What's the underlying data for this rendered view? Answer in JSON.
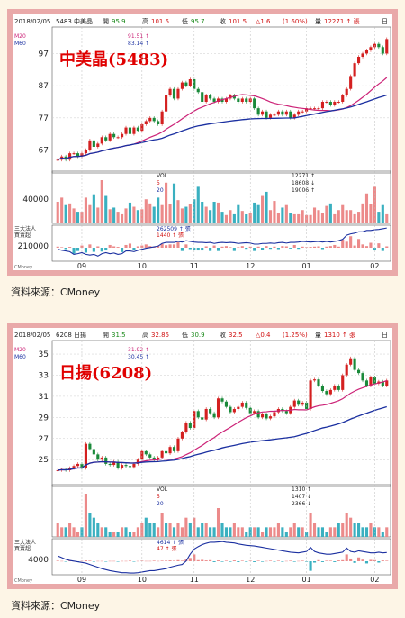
{
  "chart_data": [
    {
      "type": "line",
      "header": {
        "date": "2018/02/05",
        "code": "5483",
        "name": "中美晶",
        "open_label": "開",
        "open": "95.9",
        "high_label": "高",
        "high": "101.5",
        "low_label": "低",
        "low": "95.7",
        "close_label": "收",
        "close": "101.5",
        "change": "1.6",
        "change_pct": "(1.60%)",
        "vol_label": "量",
        "vol": "12271",
        "unit": "張",
        "period": "日"
      },
      "title": "中美晶(5483)",
      "ma_labels": [
        {
          "name": "M20",
          "value": "91.51",
          "color": "#cc2277"
        },
        {
          "name": "M60",
          "value": "83.14",
          "color": "#1a2fa0"
        }
      ],
      "price_ticks": [
        97,
        87,
        77,
        67
      ],
      "price_range": [
        61,
        103
      ],
      "close": [
        64,
        65,
        64,
        66,
        66,
        65,
        66,
        67,
        70,
        68,
        69,
        71,
        70,
        72,
        71,
        71,
        72,
        74,
        72,
        74,
        73,
        75,
        76,
        77,
        76,
        75,
        79,
        84,
        86,
        83,
        86,
        88,
        87,
        89,
        86,
        85,
        82,
        84,
        83,
        82,
        83,
        82,
        83,
        84,
        83,
        82,
        83,
        82,
        83,
        80,
        78,
        79,
        77,
        78,
        78,
        79,
        78,
        79,
        77,
        78,
        79,
        79,
        80,
        80,
        80,
        80,
        82,
        82,
        81,
        82,
        82,
        84,
        86,
        90,
        94,
        96,
        97,
        98,
        99,
        100,
        99,
        97,
        101.5
      ],
      "vol_panel": {
        "label": "VOL",
        "values": [
          {
            "v": "12271",
            "arrow": "↑"
          },
          {
            "v": "18608",
            "arrow": "↓"
          },
          {
            "v": "19006",
            "arrow": "↑"
          }
        ],
        "series_labels": [
          "5",
          "20"
        ],
        "tick": "40000"
      },
      "vol": [
        26,
        31,
        22,
        24,
        18,
        14,
        14,
        31,
        22,
        35,
        19,
        52,
        33,
        17,
        19,
        14,
        12,
        18,
        25,
        20,
        16,
        17,
        29,
        24,
        20,
        31,
        22,
        49,
        23,
        48,
        28,
        18,
        20,
        23,
        29,
        44,
        26,
        20,
        16,
        26,
        25,
        14,
        10,
        16,
        12,
        22,
        15,
        11,
        13,
        25,
        22,
        33,
        38,
        16,
        27,
        13,
        19,
        22,
        13,
        12,
        12,
        16,
        10,
        10,
        19,
        16,
        13,
        21,
        24,
        12,
        16,
        22,
        16,
        16,
        12,
        14,
        24,
        36,
        23,
        44,
        14,
        22,
        12
      ],
      "inst_panel": {
        "label": "三大法人",
        "sub_label": "買賣超",
        "line_value": "262509",
        "line_arrow": "↑",
        "bar_value": "1440",
        "bar_arrow": "↑",
        "unit": "張",
        "tick": "210000"
      },
      "inst_line": [
        0.35,
        0.32,
        0.3,
        0.28,
        0.2,
        0.22,
        0.25,
        0.2,
        0.18,
        0.2,
        0.15,
        0.22,
        0.25,
        0.22,
        0.24,
        0.2,
        0.22,
        0.3,
        0.3,
        0.28,
        0.32,
        0.35,
        0.38,
        0.4,
        0.42,
        0.44,
        0.52,
        0.55,
        0.55,
        0.55,
        0.58,
        0.56,
        0.6,
        0.58,
        0.56,
        0.55,
        0.55,
        0.54,
        0.55,
        0.52,
        0.54,
        0.55,
        0.54,
        0.55,
        0.54,
        0.52,
        0.53,
        0.54,
        0.53,
        0.5,
        0.5,
        0.52,
        0.52,
        0.53,
        0.52,
        0.54,
        0.55,
        0.53,
        0.55,
        0.55,
        0.56,
        0.58,
        0.57,
        0.56,
        0.57,
        0.58,
        0.56,
        0.58,
        0.56,
        0.58,
        0.6,
        0.64,
        0.76,
        0.8,
        0.82,
        0.86,
        0.86,
        0.9,
        0.9,
        0.92,
        0.93,
        0.95,
        0.97
      ],
      "inst_bars": [
        0.04,
        0.02,
        -0.05,
        0.03,
        -0.22,
        -0.12,
        0.08,
        -0.18,
        0.12,
        -0.15,
        0.05,
        -0.14,
        -0.1,
        0.1,
        0.05,
        0.03,
        -0.16,
        0.1,
        0.15,
        -0.1,
        0.05,
        0.08,
        0.12,
        0.06,
        0.03,
        0.08,
        0.14,
        0.09,
        0.12,
        0.12,
        0.2,
        -0.12,
        0.12,
        -0.05,
        -0.1,
        -0.1,
        -0.1,
        0.05,
        -0.12,
        0.08,
        -0.12,
        0.04,
        0.06,
        0.02,
        -0.12,
        0.02,
        0.06,
        -0.04,
        0.04,
        -0.12,
        0.04,
        -0.08,
        0.06,
        -0.04,
        0.04,
        -0.05,
        0.06,
        0.05,
        -0.03,
        0.1,
        -0.04,
        0.04,
        0.02,
        0.03,
        0.04,
        0.05,
        -0.05,
        0.04,
        0.06,
        0.1,
        0.04,
        0.3,
        0.22,
        0.42,
        0.08,
        0.32,
        0.12,
        0.06,
        0.18,
        -0.1,
        0.16,
        -0.12,
        0.05
      ],
      "x_ticks": [
        {
          "label": "09",
          "i": 6
        },
        {
          "label": "10",
          "i": 21
        },
        {
          "label": "11",
          "i": 34
        },
        {
          "label": "12",
          "i": 48
        },
        {
          "label": "01",
          "i": 62
        },
        {
          "label": "02",
          "i": 79
        }
      ],
      "year_label": "2018",
      "watermark": "CMoney"
    },
    {
      "type": "line",
      "header": {
        "date": "2018/02/05",
        "code": "6208",
        "name": "日揚",
        "open_label": "開",
        "open": "31.5",
        "high_label": "高",
        "high": "32.85",
        "low_label": "低",
        "low": "30.9",
        "close_label": "收",
        "close": "32.5",
        "change": "0.4",
        "change_pct": "(1.25%)",
        "vol_label": "量",
        "vol": "1310",
        "unit": "張",
        "period": "日"
      },
      "title": "日揚(6208)",
      "ma_labels": [
        {
          "name": "M20",
          "value": "31.92",
          "color": "#cc2277"
        },
        {
          "name": "M60",
          "value": "30.45",
          "color": "#1a2fa0"
        }
      ],
      "price_ticks": [
        35,
        33,
        31,
        29,
        27,
        25
      ],
      "price_range": [
        22.8,
        35.6
      ],
      "close": [
        24,
        24.1,
        24,
        24.2,
        24.4,
        24.6,
        24.2,
        26.5,
        26,
        25.5,
        25,
        25.2,
        24.6,
        24.5,
        24.8,
        24.2,
        24.5,
        24.4,
        24.3,
        24.6,
        25,
        25.8,
        25.5,
        25.2,
        25,
        25.2,
        25.8,
        25.6,
        26.2,
        25.8,
        27,
        27.6,
        28.5,
        28,
        29.6,
        29,
        28.8,
        29.8,
        29.4,
        29,
        30.8,
        30.5,
        30,
        29.5,
        29.8,
        30,
        30.4,
        29.9,
        29.4,
        29.6,
        29,
        29.3,
        28.9,
        29.1,
        29.5,
        29.8,
        29.6,
        29.4,
        30,
        30.6,
        30.2,
        30.4,
        29.8,
        32.5,
        32.6,
        32,
        31.5,
        31.2,
        31.6,
        32,
        31.6,
        33,
        34,
        34.6,
        33.5,
        33.2,
        32.5,
        32,
        32.8,
        32.2,
        32.4,
        32,
        32.5
      ],
      "vol_panel": {
        "label": "VOL",
        "values": [
          {
            "v": "1310",
            "arrow": "↑"
          },
          {
            "v": "1407",
            "arrow": "↓"
          },
          {
            "v": "2366",
            "arrow": "↓"
          }
        ],
        "series_labels": [
          "5",
          "20"
        ],
        "tick": ""
      },
      "vol": [
        3,
        2,
        2,
        3,
        2,
        1,
        2,
        9,
        5,
        4,
        3,
        2,
        2,
        1,
        1,
        1,
        2,
        2,
        1,
        1,
        2,
        3,
        4,
        3,
        3,
        2,
        5,
        3,
        3,
        2,
        3,
        2,
        4,
        3,
        4,
        2,
        3,
        3,
        2,
        2,
        6,
        3,
        2,
        2,
        3,
        2,
        2,
        1,
        2,
        2,
        2,
        1,
        2,
        2,
        2,
        3,
        2,
        1,
        2,
        3,
        2,
        2,
        1,
        5,
        3,
        2,
        2,
        1,
        2,
        2,
        3,
        3,
        5,
        4,
        3,
        3,
        2,
        2,
        3,
        2,
        2,
        1,
        2
      ],
      "inst_panel": {
        "label": "三大法人",
        "sub_label": "買賣超",
        "line_value": "4614",
        "line_arrow": "↑",
        "bar_value": "47",
        "bar_arrow": "↑",
        "unit": "張",
        "tick": "4000"
      },
      "inst_line": [
        0.55,
        0.5,
        0.45,
        0.42,
        0.4,
        0.38,
        0.36,
        0.34,
        0.3,
        0.26,
        0.22,
        0.18,
        0.15,
        0.12,
        0.1,
        0.08,
        0.06,
        0.06,
        0.05,
        0.05,
        0.06,
        0.08,
        0.1,
        0.12,
        0.12,
        0.14,
        0.16,
        0.18,
        0.22,
        0.25,
        0.28,
        0.3,
        0.4,
        0.6,
        0.75,
        0.82,
        0.88,
        0.92,
        0.95,
        0.95,
        0.96,
        0.97,
        0.95,
        0.94,
        0.93,
        0.9,
        0.88,
        0.86,
        0.85,
        0.84,
        0.82,
        0.8,
        0.78,
        0.76,
        0.74,
        0.72,
        0.7,
        0.68,
        0.66,
        0.65,
        0.64,
        0.66,
        0.68,
        0.8,
        0.68,
        0.64,
        0.62,
        0.6,
        0.6,
        0.62,
        0.64,
        0.66,
        0.78,
        0.68,
        0.66,
        0.7,
        0.68,
        0.66,
        0.64,
        0.64,
        0.66,
        0.64,
        0.65
      ],
      "inst_bars": [
        0.02,
        0.01,
        -0.01,
        0.02,
        0.01,
        -0.02,
        0.01,
        0.03,
        0.02,
        -0.01,
        0.01,
        0.01,
        -0.01,
        0.01,
        0.01,
        -0.01,
        0.01,
        0.01,
        0.02,
        -0.01,
        0.01,
        0.02,
        0.01,
        0.01,
        0.02,
        0.01,
        0.02,
        0.02,
        0.03,
        0.02,
        0.04,
        0.02,
        0.06,
        0.12,
        0.25,
        0.04,
        0.05,
        0.03,
        0.04,
        -0.03,
        0.03,
        -0.02,
        0.02,
        -0.02,
        0.03,
        -0.03,
        0.02,
        -0.02,
        0.02,
        -0.03,
        0.02,
        -0.02,
        0.01,
        0.02,
        -0.01,
        0.02,
        -0.02,
        0.01,
        0.02,
        -0.02,
        0.01,
        0.02,
        -0.02,
        -0.35,
        -0.05,
        0.04,
        -0.03,
        0.02,
        0.02,
        -0.03,
        0.03,
        0.04,
        0.25,
        0.1,
        -0.06,
        0.14,
        0.06,
        -0.08,
        0.05,
        0.04,
        -0.05,
        0.03,
        0.02
      ],
      "x_ticks": [
        {
          "label": "09",
          "i": 6
        },
        {
          "label": "10",
          "i": 21
        },
        {
          "label": "11",
          "i": 34
        },
        {
          "label": "12",
          "i": 48
        },
        {
          "label": "01",
          "i": 62
        },
        {
          "label": "02",
          "i": 79
        }
      ],
      "year_label": "2018",
      "watermark": "CMoney"
    }
  ],
  "source_text": "資料來源：CMoney"
}
